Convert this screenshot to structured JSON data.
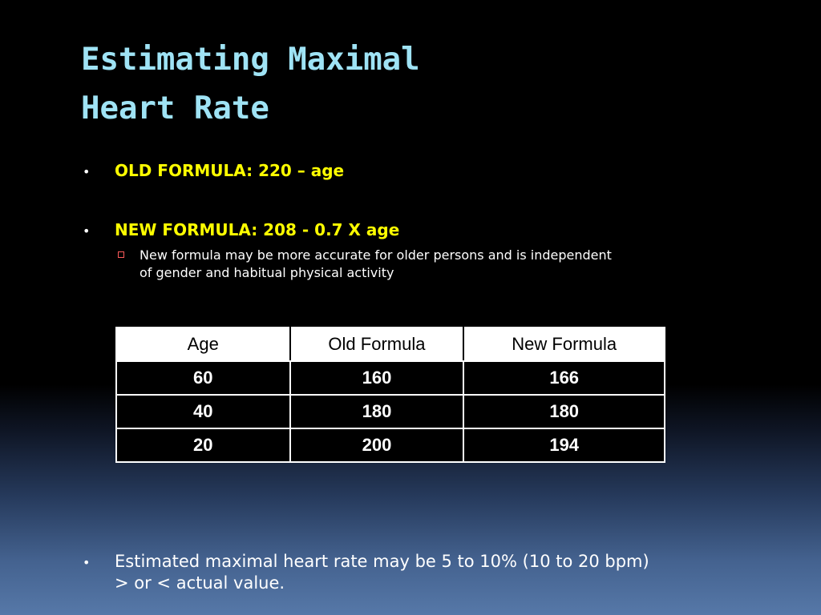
{
  "title": {
    "line1": "Estimating Maximal",
    "line2": "Heart Rate"
  },
  "bullets": {
    "old_formula": "OLD FORMULA: 220 – age",
    "new_formula": "NEW FORMULA: 208 - 0.7 X age",
    "new_formula_note": "New formula may be more accurate for older persons and is independent of gender and habitual physical activity",
    "estimate_note": "Estimated maximal heart rate may be 5 to 10% (10 to 20 bpm) > or < actual value.",
    "bullet_symbol": "•"
  },
  "table": {
    "headers": [
      "Age",
      "Old Formula",
      "New Formula"
    ],
    "rows": [
      [
        "60",
        "160",
        "166"
      ],
      [
        "40",
        "180",
        "180"
      ],
      [
        "20",
        "200",
        "194"
      ]
    ]
  },
  "colors": {
    "title": "#9fe3f5",
    "formula_text": "#ffff00",
    "body_text": "#ffffff",
    "background_top": "#000000",
    "background_bottom": "#5678a8"
  },
  "icons": {
    "sub_bullet": "hollow-square-icon"
  }
}
